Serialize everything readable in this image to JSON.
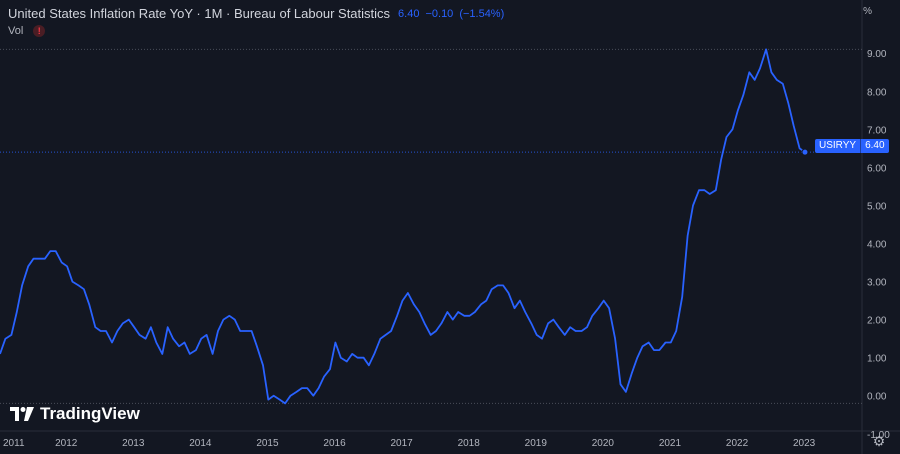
{
  "header": {
    "title": "United States Inflation Rate YoY · 1M · Bureau of Labour Statistics",
    "last_value": "6.40",
    "change": "−0.10",
    "change_pct": "(−1.54%)",
    "vol_label": "Vol",
    "warn_icon": "!"
  },
  "unit_label": "%",
  "current_tag": {
    "symbol": "USIRYY",
    "value": "6.40"
  },
  "logo": {
    "text": "TradingView",
    "icon": "tradingview-logo"
  },
  "colors": {
    "background": "#131722",
    "line": "#2962ff",
    "text": "#b2b5be",
    "grid": "#1e222d"
  },
  "chart_data": {
    "type": "line",
    "title": "United States Inflation Rate YoY · 1M · Bureau of Labour Statistics",
    "xlabel": "",
    "ylabel": "%",
    "ylim": [
      -0.9,
      9.4
    ],
    "xlim": [
      2011.0,
      2023.85
    ],
    "grid": false,
    "x_ticks": [
      "2011",
      "2012",
      "2013",
      "2014",
      "2015",
      "2016",
      "2017",
      "2018",
      "2019",
      "2020",
      "2021",
      "2022",
      "2023"
    ],
    "y_ticks": [
      "-1.00",
      "0.00",
      "1.00",
      "2.00",
      "3.00",
      "4.00",
      "5.00",
      "6.00",
      "7.00",
      "8.00",
      "9.00"
    ],
    "reference_lines": [
      9.1,
      -0.2
    ],
    "series": [
      {
        "x": [
          2011.0,
          2011.08,
          2011.17,
          2011.25,
          2011.33,
          2011.42,
          2011.5,
          2011.58,
          2011.67,
          2011.75,
          2011.83,
          2011.92,
          2012.0,
          2012.08,
          2012.17,
          2012.25,
          2012.33,
          2012.42,
          2012.5,
          2012.58,
          2012.67,
          2012.75,
          2012.83,
          2012.92,
          2013.0,
          2013.08,
          2013.17,
          2013.25,
          2013.33,
          2013.42,
          2013.5,
          2013.58,
          2013.67,
          2013.75,
          2013.83,
          2013.92,
          2014.0,
          2014.08,
          2014.17,
          2014.25,
          2014.33,
          2014.42,
          2014.5,
          2014.58,
          2014.67,
          2014.75,
          2014.83,
          2014.92,
          2015.0,
          2015.08,
          2015.17,
          2015.25,
          2015.33,
          2015.42,
          2015.5,
          2015.58,
          2015.67,
          2015.75,
          2015.83,
          2015.92,
          2016.0,
          2016.08,
          2016.17,
          2016.25,
          2016.33,
          2016.42,
          2016.5,
          2016.58,
          2016.67,
          2016.75,
          2016.83,
          2016.92,
          2017.0,
          2017.08,
          2017.17,
          2017.25,
          2017.33,
          2017.42,
          2017.5,
          2017.58,
          2017.67,
          2017.75,
          2017.83,
          2017.92,
          2018.0,
          2018.08,
          2018.17,
          2018.25,
          2018.33,
          2018.42,
          2018.5,
          2018.58,
          2018.67,
          2018.75,
          2018.83,
          2018.92,
          2019.0,
          2019.08,
          2019.17,
          2019.25,
          2019.33,
          2019.42,
          2019.5,
          2019.58,
          2019.67,
          2019.75,
          2019.83,
          2019.92,
          2020.0,
          2020.08,
          2020.17,
          2020.25,
          2020.33,
          2020.42,
          2020.5,
          2020.58,
          2020.67,
          2020.75,
          2020.83,
          2020.92,
          2021.0,
          2021.08,
          2021.17,
          2021.25,
          2021.33,
          2021.42,
          2021.5,
          2021.58,
          2021.67,
          2021.75,
          2021.83,
          2021.92,
          2022.0,
          2022.08,
          2022.17,
          2022.25,
          2022.33,
          2022.42,
          2022.5,
          2022.58,
          2022.67,
          2022.75,
          2022.83,
          2022.92,
          2023.0
        ],
        "y": [
          1.1,
          1.5,
          1.6,
          2.2,
          2.9,
          3.4,
          3.6,
          3.6,
          3.6,
          3.8,
          3.8,
          3.5,
          3.4,
          3.0,
          2.9,
          2.8,
          2.4,
          1.8,
          1.7,
          1.7,
          1.4,
          1.7,
          1.9,
          2.0,
          1.8,
          1.6,
          1.5,
          1.8,
          1.4,
          1.1,
          1.8,
          1.5,
          1.3,
          1.4,
          1.1,
          1.2,
          1.5,
          1.6,
          1.1,
          1.7,
          2.0,
          2.1,
          2.0,
          1.7,
          1.7,
          1.7,
          1.3,
          0.8,
          -0.1,
          0.0,
          -0.1,
          -0.2,
          0.0,
          0.1,
          0.2,
          0.2,
          0.0,
          0.2,
          0.5,
          0.7,
          1.4,
          1.0,
          0.9,
          1.1,
          1.0,
          1.0,
          0.8,
          1.1,
          1.5,
          1.6,
          1.7,
          2.1,
          2.5,
          2.7,
          2.4,
          2.2,
          1.9,
          1.6,
          1.7,
          1.9,
          2.2,
          2.0,
          2.2,
          2.1,
          2.1,
          2.2,
          2.4,
          2.5,
          2.8,
          2.9,
          2.9,
          2.7,
          2.3,
          2.5,
          2.2,
          1.9,
          1.6,
          1.5,
          1.9,
          2.0,
          1.8,
          1.6,
          1.8,
          1.7,
          1.7,
          1.8,
          2.1,
          2.3,
          2.5,
          2.3,
          1.5,
          0.3,
          0.1,
          0.6,
          1.0,
          1.3,
          1.4,
          1.2,
          1.2,
          1.4,
          1.4,
          1.7,
          2.6,
          4.2,
          5.0,
          5.4,
          5.4,
          5.3,
          5.4,
          6.2,
          6.8,
          7.0,
          7.5,
          7.9,
          8.5,
          8.3,
          8.6,
          9.1,
          8.5,
          8.3,
          8.2,
          7.7,
          7.1,
          6.5,
          6.4
        ],
        "color": "#2962ff"
      }
    ]
  }
}
